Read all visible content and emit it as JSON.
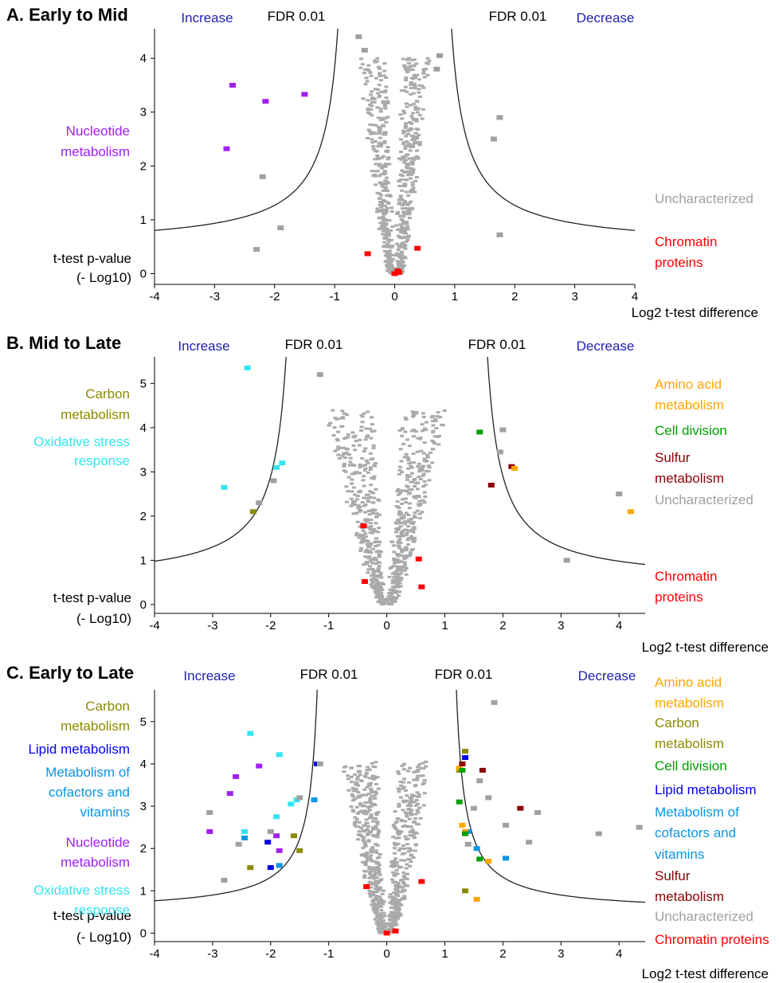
{
  "colors": {
    "increase": "#1f1fb4",
    "decrease": "#1f1fb4",
    "point": "#aaaaaa",
    "curve": "#222222",
    "chromatin": "#ff0000",
    "uncharacterized": "#a0a0a0",
    "nucleotide": "#a020f0",
    "carbon": "#8b8b00",
    "oxidative": "#33e5f2",
    "amino": "#ffa500",
    "cell_division": "#00a000",
    "sulfur": "#8b0000",
    "lipid": "#0000ee",
    "cofactors": "#0a95e6"
  },
  "chart_data": [
    {
      "type": "scatter",
      "title": "A. Early to Mid",
      "xlabel": "Log2 t-test difference",
      "ylabel": "t-test p-value\n(- Log10)",
      "xlim": [
        -4,
        4
      ],
      "ylim": [
        -0.2,
        4.55
      ],
      "xticks": [
        -4,
        -3,
        -2,
        -1,
        0,
        1,
        2,
        3,
        4
      ],
      "yticks": [
        0,
        1,
        2,
        3,
        4
      ],
      "header_left": "Increase",
      "header_right": "Decrease",
      "threshold_labels": [
        "FDR 0.01",
        "FDR 0.01"
      ],
      "fdr_curve": {
        "s0": 0.7,
        "c": 1.0
      },
      "left_legend": [
        {
          "lines": [
            "Nucleotide",
            "metabolism"
          ],
          "color_key": "nucleotide"
        }
      ],
      "right_legend": [
        {
          "lines": [
            "Uncharacterized"
          ],
          "color_key": "uncharacterized"
        },
        {
          "lines": [
            "Chromatin",
            "proteins"
          ],
          "color_key": "chromatin"
        }
      ],
      "background_cloud": {
        "count": 700,
        "spread": 0.22,
        "ymax": 4.0,
        "seed": 11
      },
      "series": [
        {
          "name": "Nucleotide metabolism",
          "color_key": "nucleotide",
          "points": [
            [
              -2.7,
              3.5
            ],
            [
              -2.15,
              3.2
            ],
            [
              -1.5,
              3.33
            ],
            [
              -2.8,
              2.32
            ]
          ]
        },
        {
          "name": "Chromatin proteins",
          "color_key": "chromatin",
          "points": [
            [
              -0.45,
              0.37
            ],
            [
              0.38,
              0.47
            ],
            [
              0.05,
              0.05
            ],
            [
              0.0,
              0.0
            ],
            [
              0.07,
              0.02
            ]
          ]
        },
        {
          "name": "Uncharacterized",
          "color_key": "uncharacterized",
          "points": [
            [
              -0.6,
              4.4
            ],
            [
              -0.5,
              4.15
            ],
            [
              0.75,
              4.05
            ],
            [
              0.7,
              3.8
            ],
            [
              1.75,
              2.9
            ],
            [
              1.65,
              2.5
            ],
            [
              -2.2,
              1.8
            ],
            [
              -2.3,
              0.45
            ],
            [
              -1.9,
              0.85
            ],
            [
              1.75,
              0.72
            ]
          ]
        }
      ]
    },
    {
      "type": "scatter",
      "title": "B. Mid to Late",
      "xlabel": "Log2 t-test difference",
      "ylabel": "t-test p-value\n(- Log10)",
      "xlim": [
        -4,
        4.45
      ],
      "ylim": [
        -0.2,
        5.6
      ],
      "xticks": [
        -4,
        -3,
        -2,
        -1,
        0,
        1,
        2,
        3,
        4
      ],
      "yticks": [
        0,
        1,
        2,
        3,
        4,
        5
      ],
      "header_left": "Increase",
      "header_right": "Decrease",
      "threshold_labels": [
        "FDR 0.01",
        "FDR 0.01"
      ],
      "fdr_curve": {
        "s0": 1.5,
        "c": 1.2
      },
      "left_legend": [
        {
          "lines": [
            "Carbon",
            "metabolism"
          ],
          "color_key": "carbon"
        },
        {
          "lines": [
            "Oxidative stress",
            "response"
          ],
          "color_key": "oxidative"
        }
      ],
      "right_legend": [
        {
          "lines": [
            "Amino acid",
            "metabolism"
          ],
          "color_key": "amino"
        },
        {
          "lines": [
            "Cell division"
          ],
          "color_key": "cell_division"
        },
        {
          "lines": [
            "Sulfur",
            "metabolism"
          ],
          "color_key": "sulfur"
        },
        {
          "lines": [
            "Uncharacterized"
          ],
          "color_key": "uncharacterized"
        },
        {
          "lines": [
            "Chromatin",
            "proteins"
          ],
          "color_key": "chromatin"
        }
      ],
      "background_cloud": {
        "count": 750,
        "spread": 0.4,
        "ymax": 4.4,
        "seed": 23
      },
      "series": [
        {
          "name": "Oxidative stress response",
          "color_key": "oxidative",
          "points": [
            [
              -2.4,
              5.35
            ],
            [
              -1.9,
              3.1
            ],
            [
              -1.8,
              3.2
            ],
            [
              -2.8,
              2.65
            ]
          ]
        },
        {
          "name": "Carbon metabolism",
          "color_key": "carbon",
          "points": [
            [
              -2.3,
              2.1
            ]
          ]
        },
        {
          "name": "Cell division",
          "color_key": "cell_division",
          "points": [
            [
              1.6,
              3.9
            ]
          ]
        },
        {
          "name": "Sulfur metabolism",
          "color_key": "sulfur",
          "points": [
            [
              2.15,
              3.12
            ],
            [
              1.8,
              2.7
            ]
          ]
        },
        {
          "name": "Amino acid metabolism",
          "color_key": "amino",
          "points": [
            [
              2.2,
              3.08
            ],
            [
              4.2,
              2.1
            ]
          ]
        },
        {
          "name": "Chromatin proteins",
          "color_key": "chromatin",
          "points": [
            [
              -0.4,
              1.78
            ],
            [
              0.55,
              1.03
            ],
            [
              -0.38,
              0.52
            ],
            [
              0.6,
              0.4
            ]
          ]
        },
        {
          "name": "Uncharacterized",
          "color_key": "uncharacterized",
          "points": [
            [
              -2.2,
              2.3
            ],
            [
              -1.95,
              2.8
            ],
            [
              2.0,
              3.95
            ],
            [
              1.95,
              3.45
            ],
            [
              4.0,
              2.5
            ],
            [
              -1.15,
              5.2
            ],
            [
              3.1,
              1.0
            ]
          ]
        }
      ]
    },
    {
      "type": "scatter",
      "title": "C. Early to Late",
      "xlabel": "Log2 t-test difference",
      "ylabel": "t-test p-value\n(- Log10)",
      "xlim": [
        -4,
        4.45
      ],
      "ylim": [
        -0.2,
        5.75
      ],
      "xticks": [
        -4,
        -3,
        -2,
        -1,
        0,
        1,
        2,
        3,
        4
      ],
      "yticks": [
        0,
        1,
        2,
        3,
        4,
        5
      ],
      "header_left": "Increase",
      "header_right": "Decrease",
      "threshold_labels": [
        "FDR 0.01",
        "FDR 0.01"
      ],
      "fdr_curve": {
        "s0": 1.05,
        "c": 0.78
      },
      "left_legend": [
        {
          "lines": [
            "Carbon",
            "metabolism"
          ],
          "color_key": "carbon"
        },
        {
          "lines": [
            "Lipid metabolism"
          ],
          "color_key": "lipid"
        },
        {
          "lines": [
            "Metabolism of",
            "cofactors and",
            "vitamins"
          ],
          "color_key": "cofactors"
        },
        {
          "lines": [
            "Nucleotide",
            "metabolism"
          ],
          "color_key": "nucleotide"
        },
        {
          "lines": [
            "Oxidative stress",
            "response"
          ],
          "color_key": "oxidative"
        }
      ],
      "right_legend": [
        {
          "lines": [
            "Amino acid",
            "metabolism"
          ],
          "color_key": "amino"
        },
        {
          "lines": [
            "Carbon",
            "metabolism"
          ],
          "color_key": "carbon"
        },
        {
          "lines": [
            "Cell division"
          ],
          "color_key": "cell_division"
        },
        {
          "lines": [
            "Lipid metabolism"
          ],
          "color_key": "lipid"
        },
        {
          "lines": [
            "Metabolism of",
            "cofactors and",
            "vitamins"
          ],
          "color_key": "cofactors"
        },
        {
          "lines": [
            "Sulfur",
            "metabolism"
          ],
          "color_key": "sulfur"
        },
        {
          "lines": [
            "Uncharacterized"
          ],
          "color_key": "uncharacterized"
        },
        {
          "lines": [
            "Chromatin proteins"
          ],
          "color_key": "chromatin"
        }
      ],
      "background_cloud": {
        "count": 760,
        "spread": 0.3,
        "ymax": 4.05,
        "seed": 37
      },
      "series": [
        {
          "name": "Nucleotide metabolism",
          "color_key": "nucleotide",
          "points": [
            [
              -2.6,
              3.7
            ],
            [
              -2.7,
              3.3
            ],
            [
              -3.05,
              2.4
            ],
            [
              -2.2,
              3.95
            ],
            [
              -1.85,
              1.95
            ],
            [
              -1.9,
              2.3
            ]
          ]
        },
        {
          "name": "Oxidative stress response",
          "color_key": "oxidative",
          "points": [
            [
              -2.35,
              4.72
            ],
            [
              -1.85,
              4.22
            ],
            [
              -2.45,
              2.4
            ],
            [
              -1.9,
              2.75
            ],
            [
              -1.65,
              3.05
            ],
            [
              -1.55,
              3.15
            ]
          ]
        },
        {
          "name": "Lipid metabolism",
          "color_key": "lipid",
          "points": [
            [
              -1.2,
              4.0
            ],
            [
              -2.05,
              2.15
            ],
            [
              -2.0,
              1.55
            ],
            [
              1.35,
              4.15
            ]
          ]
        },
        {
          "name": "Metabolism of cofactors and vitamins",
          "color_key": "cofactors",
          "points": [
            [
              -2.45,
              2.25
            ],
            [
              -1.85,
              1.6
            ],
            [
              -1.25,
              3.15
            ],
            [
              1.55,
              2.0
            ],
            [
              2.05,
              1.77
            ],
            [
              1.4,
              2.4
            ]
          ]
        },
        {
          "name": "Carbon metabolism",
          "color_key": "carbon",
          "points": [
            [
              -1.6,
              2.3
            ],
            [
              -1.5,
              1.95
            ],
            [
              -2.35,
              1.55
            ],
            [
              1.35,
              4.3
            ],
            [
              1.25,
              3.85
            ],
            [
              1.35,
              1.0
            ]
          ]
        },
        {
          "name": "Amino acid metabolism",
          "color_key": "amino",
          "points": [
            [
              1.25,
              3.9
            ],
            [
              1.3,
              2.55
            ],
            [
              1.35,
              2.4
            ],
            [
              1.75,
              1.7
            ],
            [
              1.55,
              0.8
            ]
          ]
        },
        {
          "name": "Cell division",
          "color_key": "cell_division",
          "points": [
            [
              1.3,
              3.85
            ],
            [
              1.25,
              3.1
            ],
            [
              1.35,
              2.35
            ],
            [
              1.6,
              1.75
            ]
          ]
        },
        {
          "name": "Sulfur metabolism",
          "color_key": "sulfur",
          "points": [
            [
              1.3,
              4.0
            ],
            [
              1.65,
              3.85
            ],
            [
              2.3,
              2.95
            ]
          ]
        },
        {
          "name": "Chromatin proteins",
          "color_key": "chromatin",
          "points": [
            [
              -0.35,
              1.1
            ],
            [
              0.6,
              1.22
            ],
            [
              0.15,
              0.05
            ],
            [
              0.0,
              0.0
            ]
          ]
        },
        {
          "name": "Uncharacterized",
          "color_key": "uncharacterized",
          "points": [
            [
              1.85,
              5.45
            ],
            [
              -3.05,
              2.85
            ],
            [
              -2.8,
              1.25
            ],
            [
              -1.15,
              4.0
            ],
            [
              -1.5,
              3.2
            ],
            [
              3.65,
              2.35
            ],
            [
              4.35,
              2.5
            ],
            [
              2.6,
              2.85
            ],
            [
              2.05,
              2.55
            ],
            [
              1.5,
              2.95
            ],
            [
              1.75,
              3.2
            ],
            [
              2.45,
              2.15
            ],
            [
              1.4,
              2.1
            ],
            [
              1.6,
              3.6
            ],
            [
              -2.55,
              2.1
            ],
            [
              -2.0,
              2.4
            ]
          ]
        }
      ]
    }
  ]
}
